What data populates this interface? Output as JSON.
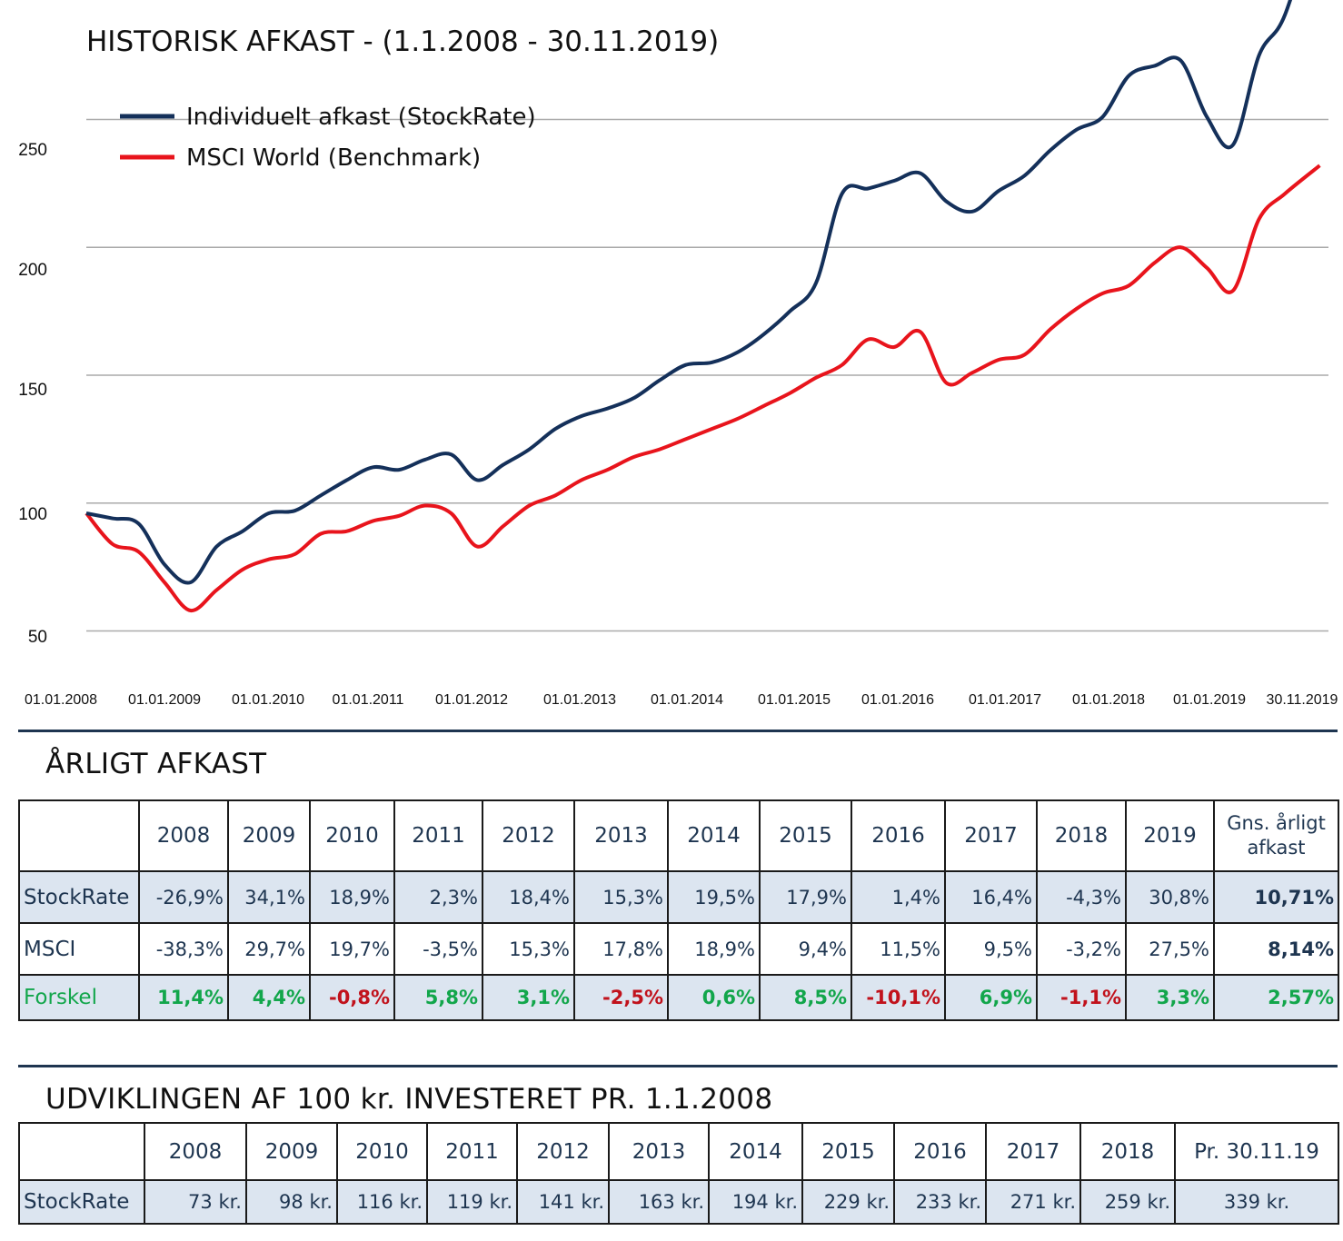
{
  "chart": {
    "title": "HISTORISK AFKAST - (1.1.2008 - 30.11.2019)",
    "legend": [
      {
        "label": "Individuelt afkast (StockRate)",
        "color": "#14305a"
      },
      {
        "label": "MSCI World (Benchmark)",
        "color": "#e8141c"
      }
    ],
    "y_tick_labels": [
      "250",
      "200",
      "150",
      "100",
      "50"
    ],
    "x_tick_labels": [
      "01.01.2008",
      "01.01.2009",
      "01.01.2010",
      "01.01.2011",
      "01.01.2012",
      "01.01.2013",
      "01.01.2014",
      "01.01.2015",
      "01.01.2016",
      "01.01.2017",
      "01.01.2018",
      "01.01.2019",
      "30.11.2019"
    ]
  },
  "chart_data": {
    "type": "line",
    "title": "HISTORISK AFKAST - (1.1.2008 - 30.11.2019)",
    "xlabel": "",
    "ylabel": "",
    "x_range": [
      "01.01.2008",
      "30.11.2019"
    ],
    "ylim": [
      46,
      300
    ],
    "grid": "horizontal",
    "legend_position": "top-left",
    "x": [
      "2008-01",
      "2008-04",
      "2008-07",
      "2008-10",
      "2009-01",
      "2009-04",
      "2009-07",
      "2009-10",
      "2010-01",
      "2010-04",
      "2010-07",
      "2010-10",
      "2011-01",
      "2011-04",
      "2011-07",
      "2011-10",
      "2012-01",
      "2012-04",
      "2012-07",
      "2012-10",
      "2013-01",
      "2013-04",
      "2013-07",
      "2013-10",
      "2014-01",
      "2014-04",
      "2014-07",
      "2014-10",
      "2015-01",
      "2015-04",
      "2015-07",
      "2015-10",
      "2016-01",
      "2016-04",
      "2016-07",
      "2016-10",
      "2017-01",
      "2017-04",
      "2017-07",
      "2017-10",
      "2018-01",
      "2018-04",
      "2018-07",
      "2018-10",
      "2019-01",
      "2019-04",
      "2019-07",
      "2019-11"
    ],
    "series": [
      {
        "name": "Individuelt afkast (StockRate)",
        "color": "#14305a",
        "values": [
          100,
          98,
          96,
          80,
          73,
          87,
          93,
          100,
          101,
          107,
          113,
          118,
          117,
          121,
          123,
          113,
          119,
          125,
          133,
          138,
          141,
          145,
          152,
          158,
          159,
          163,
          170,
          179,
          190,
          225,
          227,
          230,
          233,
          222,
          218,
          226,
          232,
          242,
          250,
          255,
          271,
          275,
          277,
          255,
          244,
          279,
          295,
          339
        ]
      },
      {
        "name": "MSCI World (Benchmark)",
        "color": "#e8141c",
        "values": [
          100,
          88,
          85,
          73,
          62,
          70,
          78,
          82,
          84,
          92,
          93,
          97,
          99,
          103,
          100,
          87,
          95,
          103,
          107,
          113,
          117,
          122,
          125,
          129,
          133,
          137,
          142,
          147,
          153,
          158,
          168,
          165,
          171,
          151,
          155,
          160,
          162,
          172,
          180,
          186,
          189,
          198,
          204,
          196,
          187,
          215,
          225,
          236
        ]
      }
    ]
  },
  "annual": {
    "title": "ÅRLIGT AFKAST",
    "headers": [
      "",
      "2008",
      "2009",
      "2010",
      "2011",
      "2012",
      "2013",
      "2014",
      "2015",
      "2016",
      "2017",
      "2018",
      "2019"
    ],
    "avg_header": "Gns. årligt afkast",
    "rows": [
      {
        "label": "StockRate",
        "values": [
          "-26,9%",
          "34,1%",
          "18,9%",
          "2,3%",
          "18,4%",
          "15,3%",
          "19,5%",
          "17,9%",
          "1,4%",
          "16,4%",
          "-4,3%",
          "30,8%"
        ],
        "avg": "10,71%"
      },
      {
        "label": "MSCI",
        "values": [
          "-38,3%",
          "29,7%",
          "19,7%",
          "-3,5%",
          "15,3%",
          "17,8%",
          "18,9%",
          "9,4%",
          "11,5%",
          "9,5%",
          "-3,2%",
          "27,5%"
        ],
        "avg": "8,14%"
      },
      {
        "label": "Forskel",
        "values": [
          "11,4%",
          "4,4%",
          "-0,8%",
          "5,8%",
          "3,1%",
          "-2,5%",
          "0,6%",
          "8,5%",
          "-10,1%",
          "6,9%",
          "-1,1%",
          "3,3%"
        ],
        "avg": "2,57%"
      }
    ]
  },
  "growth": {
    "title": "UDVIKLINGEN AF 100 kr. INVESTERET PR. 1.1.2008",
    "headers": [
      "",
      "2008",
      "2009",
      "2010",
      "2011",
      "2012",
      "2013",
      "2014",
      "2015",
      "2016",
      "2017",
      "2018",
      "Pr. 30.11.19"
    ],
    "row": {
      "label": "StockRate",
      "values": [
        "73 kr.",
        "98 kr.",
        "116 kr.",
        "119 kr.",
        "141 kr.",
        "163 kr.",
        "194 kr.",
        "229 kr.",
        "233 kr.",
        "271 kr.",
        "259 kr.",
        "339 kr."
      ]
    }
  }
}
